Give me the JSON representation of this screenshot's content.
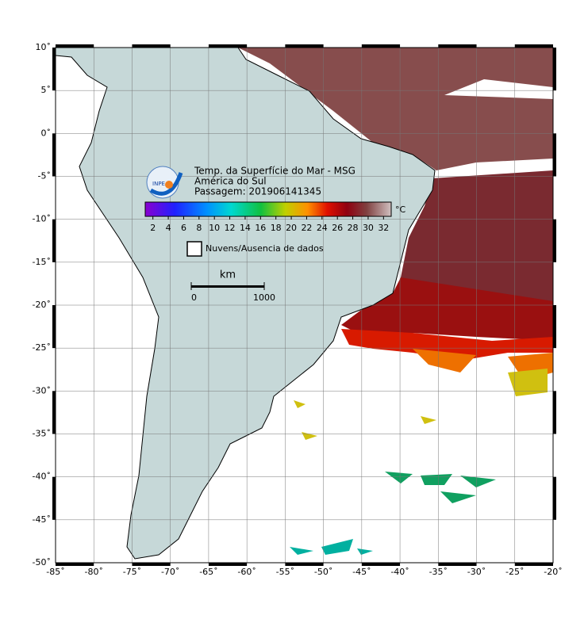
{
  "map": {
    "xlim": [
      -85,
      -20
    ],
    "ylim": [
      -50,
      10
    ],
    "xticks": [
      {
        "value": -85,
        "label": "-85˚"
      },
      {
        "value": -80,
        "label": "-80˚"
      },
      {
        "value": -75,
        "label": "-75˚"
      },
      {
        "value": -70,
        "label": "-70˚"
      },
      {
        "value": -65,
        "label": "-65˚"
      },
      {
        "value": -60,
        "label": "-60˚"
      },
      {
        "value": -55,
        "label": "-55˚"
      },
      {
        "value": -50,
        "label": "-50˚"
      },
      {
        "value": -45,
        "label": "-45˚"
      },
      {
        "value": -40,
        "label": "-40˚"
      },
      {
        "value": -35,
        "label": "-35˚"
      },
      {
        "value": -30,
        "label": "-30˚"
      },
      {
        "value": -25,
        "label": "-25˚"
      },
      {
        "value": -20,
        "label": "-20˚"
      }
    ],
    "yticks": [
      {
        "value": 10,
        "label": "10˚"
      },
      {
        "value": 5,
        "label": "5˚"
      },
      {
        "value": 0,
        "label": "0˚"
      },
      {
        "value": -5,
        "label": "-5˚"
      },
      {
        "value": -10,
        "label": "-10˚"
      },
      {
        "value": -15,
        "label": "-15˚"
      },
      {
        "value": -20,
        "label": "-20˚"
      },
      {
        "value": -25,
        "label": "-25˚"
      },
      {
        "value": -30,
        "label": "-30˚"
      },
      {
        "value": -35,
        "label": "-35˚"
      },
      {
        "value": -40,
        "label": "-40˚"
      },
      {
        "value": -45,
        "label": "-45˚"
      },
      {
        "value": -50,
        "label": "-50˚"
      }
    ],
    "grid": true
  },
  "header": {
    "lines": [
      "Temp. da Superfície do Mar - MSG",
      "América do Sul",
      "Passagem: 201906141345"
    ],
    "logo_text": "INPE"
  },
  "colorbar": {
    "unit": "°C",
    "clim": [
      1,
      33
    ],
    "ticks": [
      2,
      4,
      6,
      8,
      10,
      12,
      14,
      16,
      18,
      20,
      22,
      24,
      26,
      28,
      30,
      32
    ]
  },
  "legend": {
    "label": "Nuvens/Ausencia de dados"
  },
  "scale_bar": {
    "unit": "km",
    "ticks": [
      0,
      1000
    ]
  }
}
